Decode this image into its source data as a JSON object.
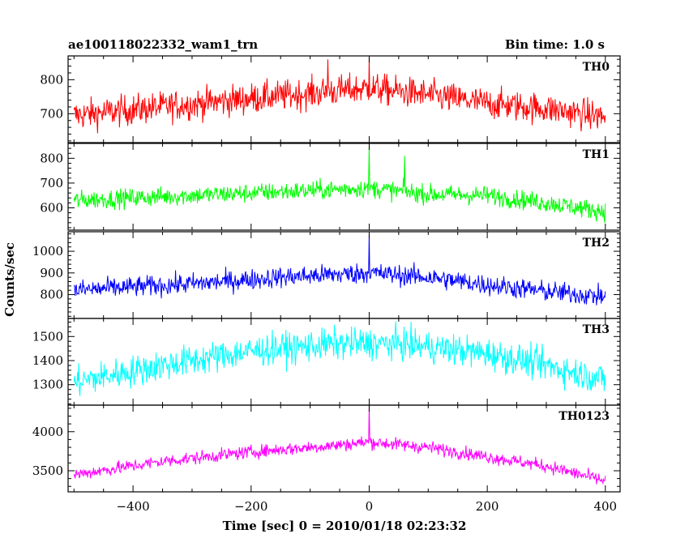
{
  "header": {
    "observation": "ae100118022332_wam1_trn",
    "bin_time": "Bin time: 1.0 s"
  },
  "chart_data": {
    "type": "line",
    "title": "ae100118022332_wam1_trn",
    "subtitle": "Bin time: 1.0 s",
    "xlabel": "Time [sec] 0 = 2010/01/18 02:23:32",
    "ylabel": "Counts/sec",
    "xlim": [
      -510,
      425
    ],
    "x_ticks": [
      -400,
      -200,
      0,
      200,
      400
    ],
    "x_tick_labels": [
      "−400",
      "−200",
      "0",
      "200",
      "400"
    ],
    "x_range": [
      -500,
      400
    ],
    "bin_seconds": 1.0,
    "panels": [
      {
        "name": "TH0",
        "color": "#ff0000",
        "ylim": [
          615,
          870
        ],
        "yticks": [
          700,
          800
        ],
        "trend": [
          [
            -500,
            695
          ],
          [
            -350,
            720
          ],
          [
            -200,
            745
          ],
          [
            -100,
            760
          ],
          [
            0,
            775
          ],
          [
            100,
            755
          ],
          [
            200,
            730
          ],
          [
            300,
            715
          ],
          [
            400,
            690
          ]
        ],
        "noise": 38,
        "spikes": [
          [
            0,
            865
          ],
          [
            -70,
            860
          ]
        ]
      },
      {
        "name": "TH1",
        "color": "#00ff00",
        "ylim": [
          510,
          860
        ],
        "yticks": [
          600,
          700,
          800
        ],
        "trend": [
          [
            -500,
            630
          ],
          [
            -300,
            650
          ],
          [
            -150,
            665
          ],
          [
            0,
            680
          ],
          [
            100,
            655
          ],
          [
            200,
            650
          ],
          [
            300,
            620
          ],
          [
            400,
            585
          ]
        ],
        "noise": 32,
        "spikes": [
          [
            0,
            850
          ],
          [
            60,
            810
          ]
        ]
      },
      {
        "name": "TH2",
        "color": "#0000ff",
        "ylim": [
          690,
          1090
        ],
        "yticks": [
          800,
          900,
          1000
        ],
        "trend": [
          [
            -500,
            820
          ],
          [
            -300,
            850
          ],
          [
            -150,
            880
          ],
          [
            0,
            900
          ],
          [
            100,
            880
          ],
          [
            200,
            845
          ],
          [
            300,
            815
          ],
          [
            400,
            790
          ]
        ],
        "noise": 40,
        "spikes": [
          [
            0,
            1080
          ]
        ]
      },
      {
        "name": "TH3",
        "color": "#00ffff",
        "ylim": [
          1215,
          1575
        ],
        "yticks": [
          1300,
          1400,
          1500
        ],
        "trend": [
          [
            -500,
            1310
          ],
          [
            -350,
            1380
          ],
          [
            -200,
            1440
          ],
          [
            -50,
            1470
          ],
          [
            50,
            1470
          ],
          [
            200,
            1430
          ],
          [
            300,
            1380
          ],
          [
            400,
            1320
          ]
        ],
        "noise": 55,
        "spikes": []
      },
      {
        "name": "TH0123",
        "color": "#ff00ff",
        "ylim": [
          3230,
          4340
        ],
        "yticks": [
          3500,
          4000
        ],
        "trend": [
          [
            -500,
            3450
          ],
          [
            -350,
            3620
          ],
          [
            -200,
            3740
          ],
          [
            -50,
            3830
          ],
          [
            0,
            3870
          ],
          [
            100,
            3800
          ],
          [
            200,
            3680
          ],
          [
            300,
            3560
          ],
          [
            400,
            3370
          ]
        ],
        "noise": 70,
        "spikes": [
          [
            0,
            4330
          ]
        ]
      }
    ]
  }
}
